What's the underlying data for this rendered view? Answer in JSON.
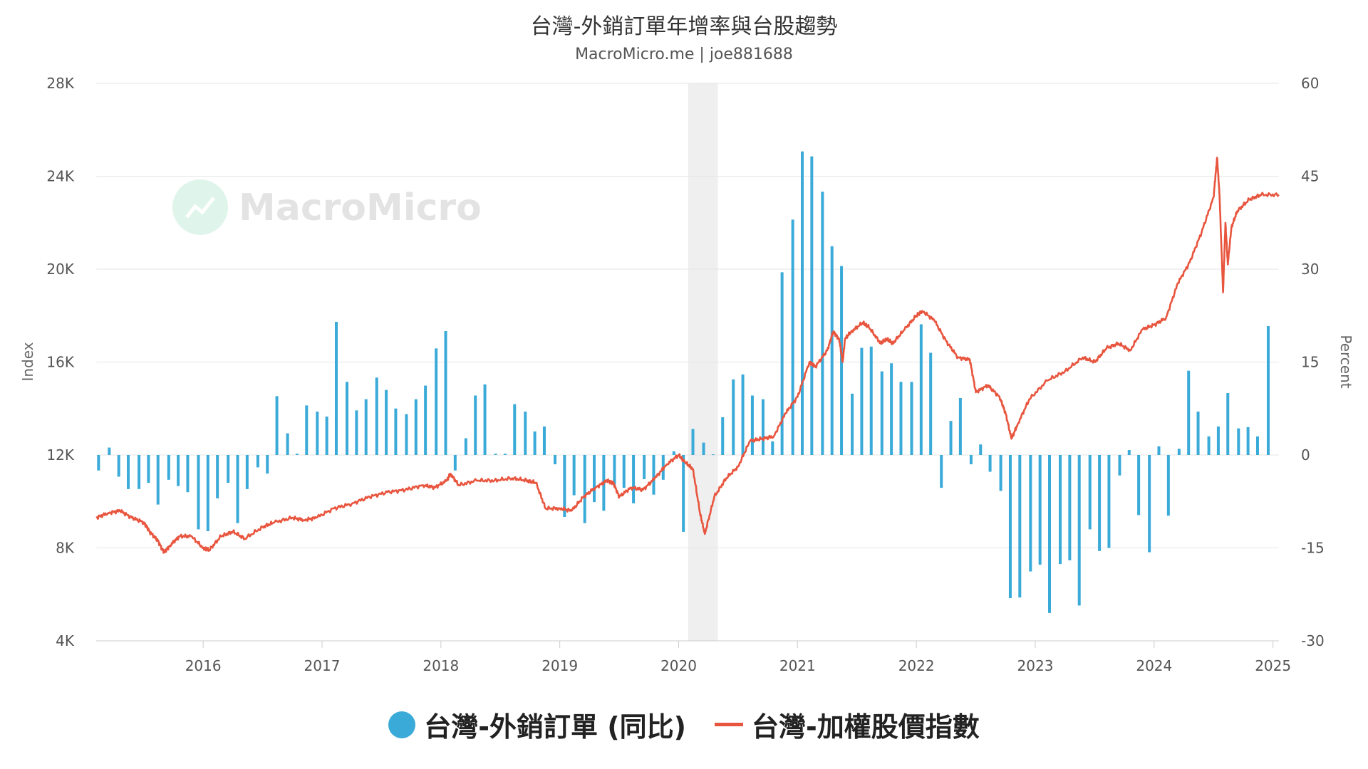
{
  "chart_data": {
    "type": "bar+line",
    "title": "台灣-外銷訂單年增率與台股趨勢",
    "subtitle": "MacroMicro.me | joe881688",
    "watermark": "MacroMicro",
    "y_left_label": "Index",
    "y_right_label": "Percent",
    "y_left_range": [
      4000,
      28000
    ],
    "y_right_range": [
      -30,
      60
    ],
    "y_left_ticks": [
      "4K",
      "8K",
      "12K",
      "16K",
      "20K",
      "24K",
      "28K"
    ],
    "y_right_ticks": [
      "-30",
      "-15",
      "0",
      "15",
      "30",
      "45",
      "60"
    ],
    "x_ticks": [
      "2016",
      "2017",
      "2018",
      "2019",
      "2020",
      "2021",
      "2022",
      "2023",
      "2024",
      "2025"
    ],
    "x_range": [
      2015.1,
      2025.05
    ],
    "grid": true,
    "recession_band": [
      2020.08,
      2020.33
    ],
    "legend_position": "bottom",
    "series": [
      {
        "name": "台灣-外銷訂單 (同比)",
        "type": "bar",
        "axis": "right",
        "color": "#3aaad8",
        "x": [
          2015.12,
          2015.21,
          2015.29,
          2015.37,
          2015.46,
          2015.54,
          2015.62,
          2015.71,
          2015.79,
          2015.87,
          2015.96,
          2016.04,
          2016.12,
          2016.21,
          2016.29,
          2016.37,
          2016.46,
          2016.54,
          2016.62,
          2016.71,
          2016.79,
          2016.87,
          2016.96,
          2017.04,
          2017.12,
          2017.21,
          2017.29,
          2017.37,
          2017.46,
          2017.54,
          2017.62,
          2017.71,
          2017.79,
          2017.87,
          2017.96,
          2018.04,
          2018.12,
          2018.21,
          2018.29,
          2018.37,
          2018.46,
          2018.54,
          2018.62,
          2018.71,
          2018.79,
          2018.87,
          2018.96,
          2019.04,
          2019.12,
          2019.21,
          2019.29,
          2019.37,
          2019.46,
          2019.54,
          2019.62,
          2019.71,
          2019.79,
          2019.87,
          2019.96,
          2020.04,
          2020.12,
          2020.21,
          2020.29,
          2020.37,
          2020.46,
          2020.54,
          2020.62,
          2020.71,
          2020.79,
          2020.87,
          2020.96,
          2021.04,
          2021.12,
          2021.21,
          2021.29,
          2021.37,
          2021.46,
          2021.54,
          2021.62,
          2021.71,
          2021.79,
          2021.87,
          2021.96,
          2022.04,
          2022.12,
          2022.21,
          2022.29,
          2022.37,
          2022.46,
          2022.54,
          2022.62,
          2022.71,
          2022.79,
          2022.87,
          2022.96,
          2023.04,
          2023.12,
          2023.21,
          2023.29,
          2023.37,
          2023.46,
          2023.54,
          2023.62,
          2023.71,
          2023.79,
          2023.87,
          2023.96,
          2024.04,
          2024.12,
          2024.21,
          2024.29,
          2024.37,
          2024.46,
          2024.54,
          2024.62,
          2024.71,
          2024.79,
          2024.87,
          2024.96
        ],
        "values": [
          -2.5,
          1.2,
          -3.5,
          -5.5,
          -5.5,
          -4.5,
          -8,
          -4,
          -5,
          -6,
          -12,
          -12.3,
          -7,
          -4.5,
          -11,
          -5.5,
          -2,
          -3,
          9.5,
          3.5,
          0.2,
          8,
          7,
          6.2,
          21.5,
          11.8,
          7.2,
          9,
          12.5,
          10.5,
          7.5,
          6.6,
          9,
          11.2,
          17.2,
          20,
          -2.5,
          2.7,
          9.6,
          11.4,
          0.2,
          0.2,
          8.2,
          7,
          3.8,
          4.6,
          -1.5,
          -10,
          -6.5,
          -11,
          -7.6,
          -9,
          -4.8,
          -5.3,
          -7.8,
          -3.9,
          -6.4,
          -4,
          0.6,
          -12.4,
          4.2,
          2,
          0.1,
          6.1,
          12.2,
          13,
          9.6,
          9,
          2.2,
          29.5,
          38,
          49,
          48.2,
          42.5,
          33.7,
          30.5,
          9.9,
          17.3,
          17.5,
          13.5,
          14.8,
          11.8,
          11.8,
          21.1,
          16.5,
          -5.3,
          5.5,
          9.2,
          -1.5,
          1.7,
          -2.7,
          -5.8,
          -23.1,
          -23,
          -18.8,
          -17.7,
          -25.5,
          -17.6,
          -17,
          -24.3,
          -12,
          -15.5,
          -15,
          -3.3,
          0.8,
          -9.7,
          -15.7,
          1.4,
          -9.8,
          1,
          13.6,
          7,
          3,
          4.6,
          10,
          4.3,
          4.5,
          3,
          20.8
        ]
      },
      {
        "name": "台灣-加權股價指數",
        "type": "line",
        "axis": "left",
        "color": "#e8553e",
        "x": [
          2015.1,
          2015.2,
          2015.3,
          2015.4,
          2015.5,
          2015.55,
          2015.62,
          2015.67,
          2015.72,
          2015.8,
          2015.9,
          2016.0,
          2016.05,
          2016.15,
          2016.25,
          2016.35,
          2016.5,
          2016.6,
          2016.75,
          2016.85,
          2016.95,
          2017.1,
          2017.25,
          2017.4,
          2017.55,
          2017.7,
          2017.85,
          2017.95,
          2018.05,
          2018.08,
          2018.15,
          2018.3,
          2018.45,
          2018.6,
          2018.72,
          2018.8,
          2018.88,
          2019.0,
          2019.1,
          2019.2,
          2019.3,
          2019.4,
          2019.45,
          2019.5,
          2019.6,
          2019.7,
          2019.8,
          2019.9,
          2020.0,
          2020.05,
          2020.12,
          2020.18,
          2020.22,
          2020.3,
          2020.4,
          2020.5,
          2020.6,
          2020.7,
          2020.8,
          2020.9,
          2021.0,
          2021.1,
          2021.15,
          2021.25,
          2021.3,
          2021.35,
          2021.38,
          2021.4,
          2021.45,
          2021.55,
          2021.6,
          2021.7,
          2021.75,
          2021.8,
          2021.9,
          2022.0,
          2022.05,
          2022.15,
          2022.25,
          2022.35,
          2022.45,
          2022.5,
          2022.6,
          2022.7,
          2022.75,
          2022.8,
          2022.85,
          2022.95,
          2023.1,
          2023.25,
          2023.4,
          2023.5,
          2023.6,
          2023.7,
          2023.8,
          2023.9,
          2024.0,
          2024.1,
          2024.2,
          2024.3,
          2024.4,
          2024.5,
          2024.53,
          2024.55,
          2024.58,
          2024.6,
          2024.62,
          2024.65,
          2024.7,
          2024.8,
          2024.9,
          2025.05
        ],
        "values": [
          9300,
          9500,
          9600,
          9300,
          9100,
          8700,
          8300,
          7800,
          8100,
          8500,
          8500,
          8000,
          7900,
          8500,
          8700,
          8400,
          8900,
          9100,
          9300,
          9200,
          9300,
          9700,
          9900,
          10200,
          10400,
          10500,
          10700,
          10600,
          10900,
          11200,
          10700,
          10900,
          10900,
          11000,
          10900,
          10800,
          9700,
          9700,
          9600,
          10200,
          10600,
          10900,
          10800,
          10200,
          10600,
          10500,
          11000,
          11600,
          12000,
          11700,
          11400,
          9500,
          8600,
          10200,
          11000,
          11500,
          12600,
          12700,
          12800,
          13800,
          14500,
          16000,
          15800,
          16500,
          17300,
          17000,
          16000,
          17000,
          17300,
          17700,
          17500,
          16800,
          17000,
          16800,
          17400,
          18000,
          18200,
          17800,
          16900,
          16200,
          16100,
          14700,
          15000,
          14500,
          13800,
          12700,
          13300,
          14400,
          15200,
          15600,
          16200,
          16000,
          16600,
          16800,
          16500,
          17400,
          17600,
          17900,
          19400,
          20300,
          21600,
          23100,
          24800,
          23200,
          19000,
          22000,
          20200,
          21800,
          22500,
          23000,
          23200,
          23200
        ]
      }
    ]
  },
  "legend": {
    "bar_label": "台灣-外銷訂單 (同比)",
    "line_label": "台灣-加權股價指數"
  }
}
